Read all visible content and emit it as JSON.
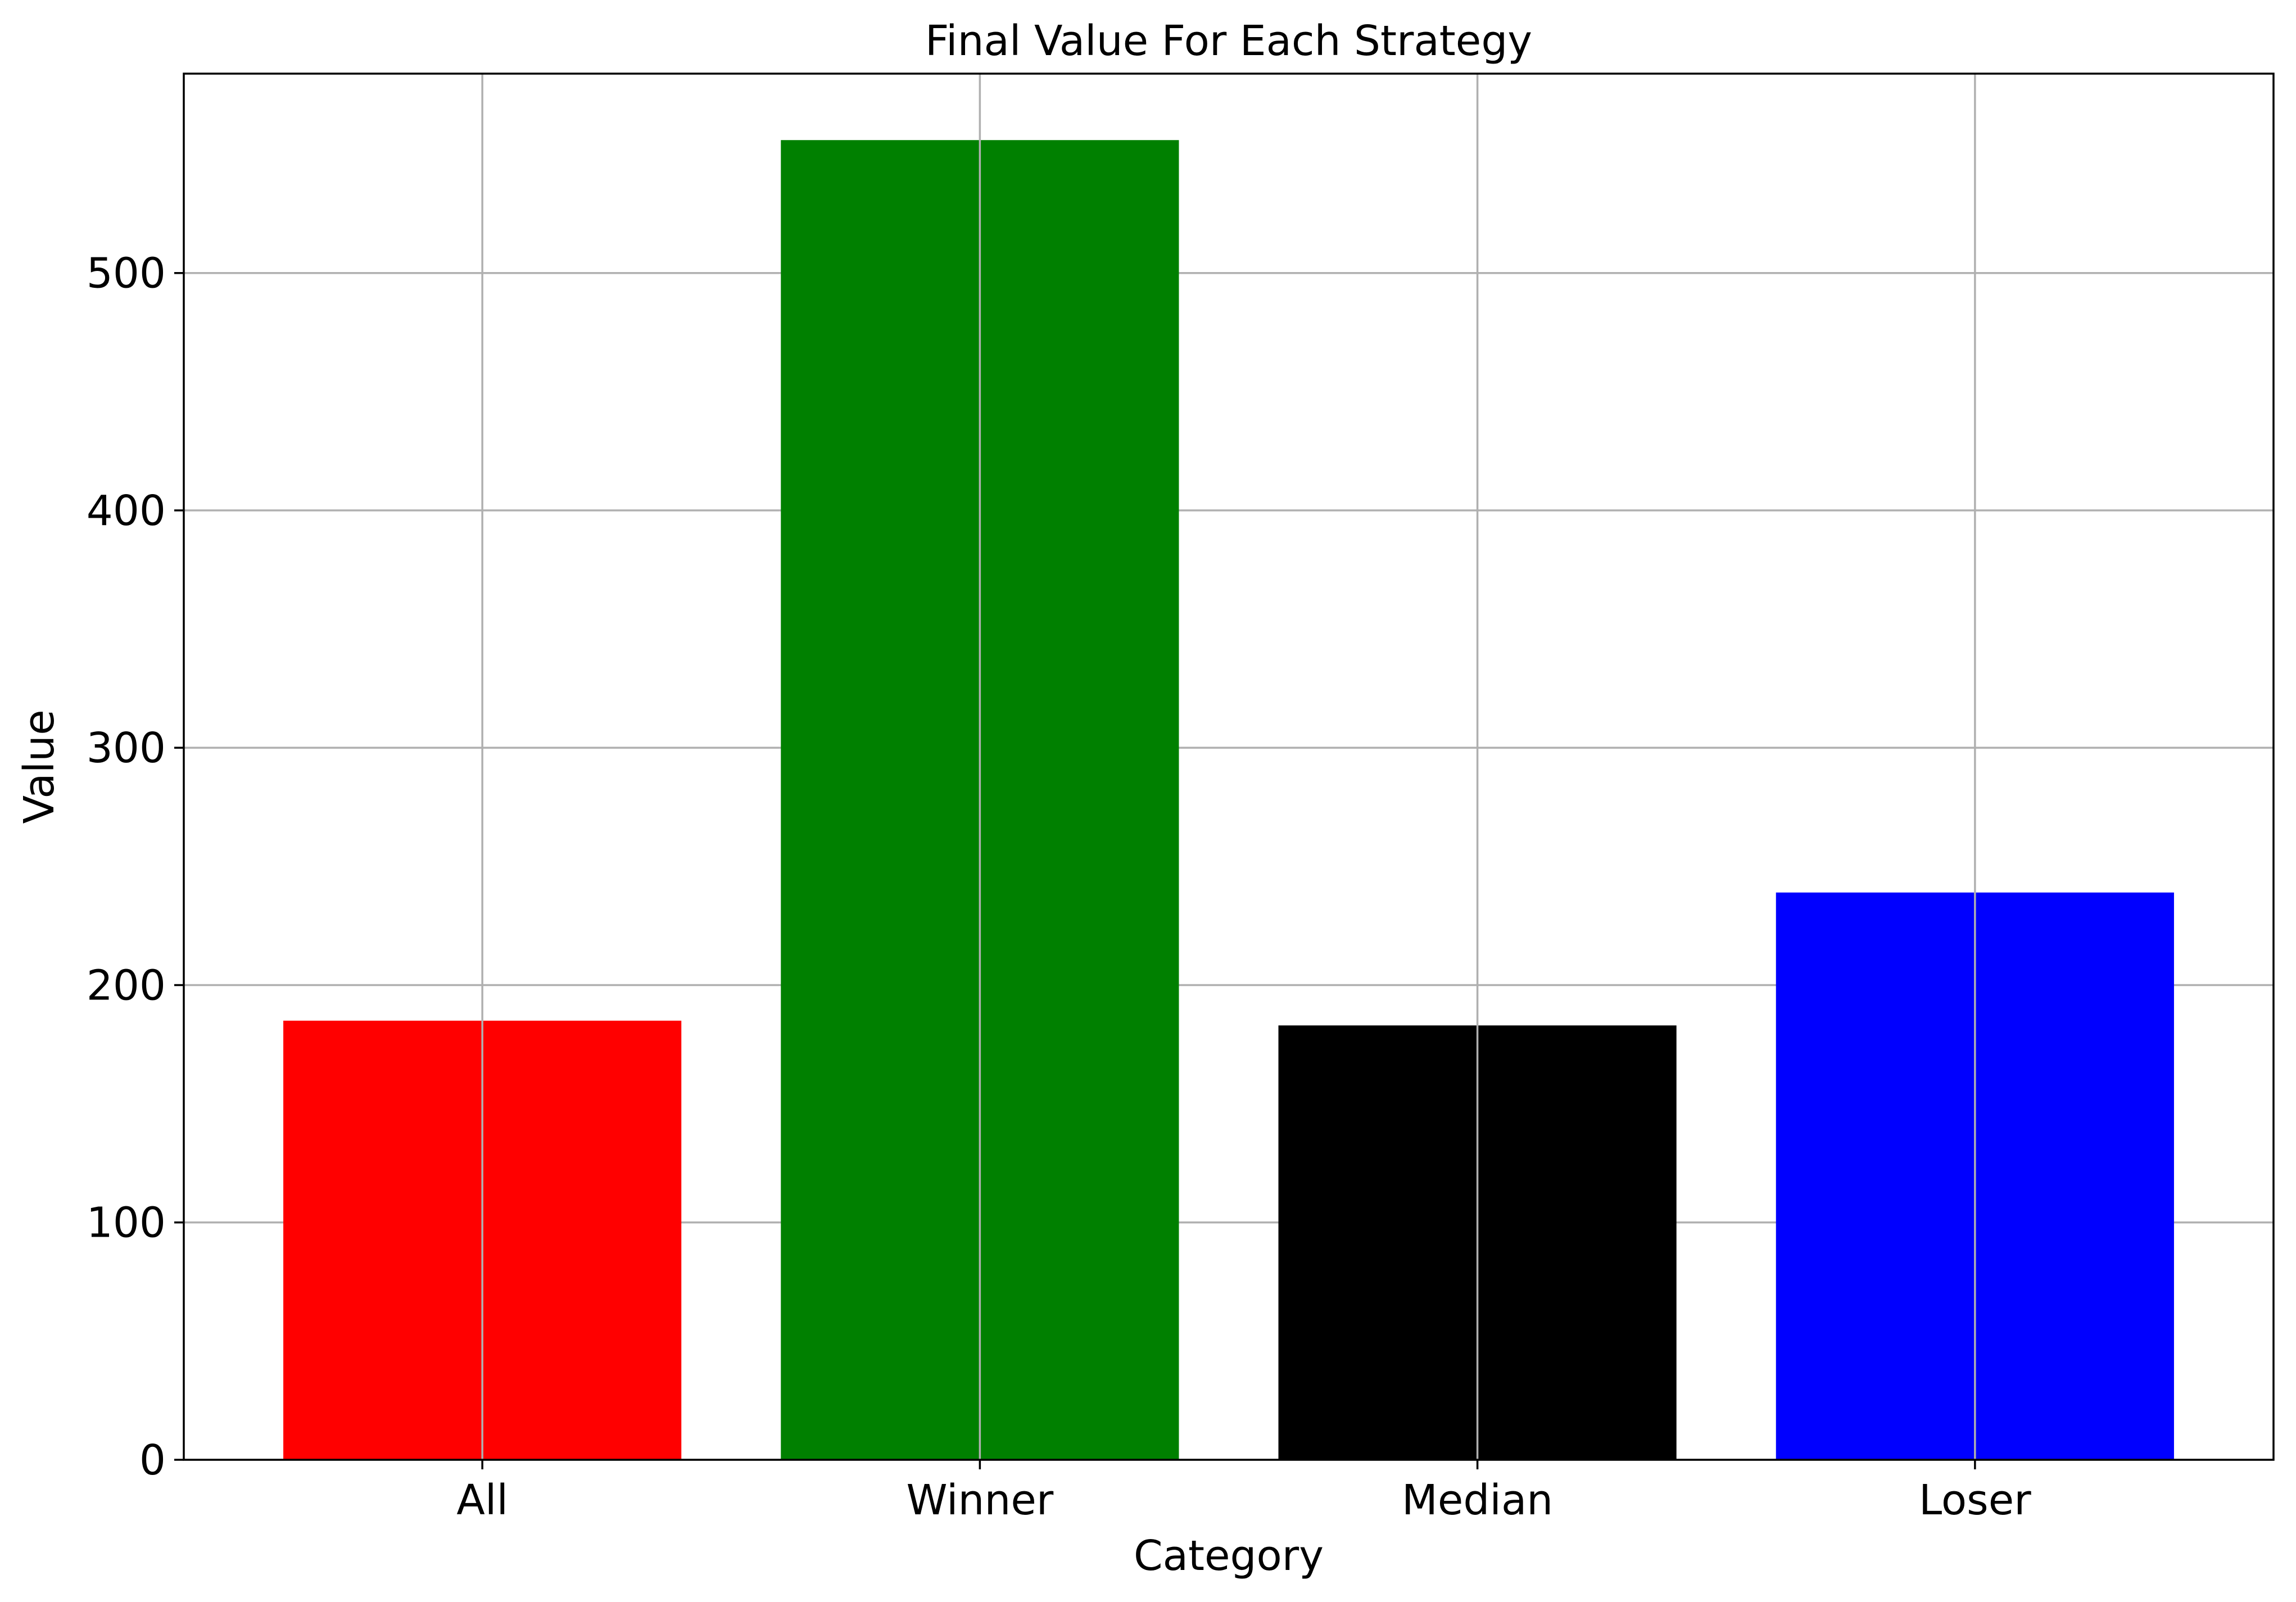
{
  "chart_data": {
    "type": "bar",
    "title": "Final Value For Each Strategy",
    "xlabel": "Category",
    "ylabel": "Value",
    "categories": [
      "All",
      "Winner",
      "Median",
      "Loser"
    ],
    "values": [
      185,
      556,
      183,
      239
    ],
    "colors": [
      "#ff0000",
      "#008000",
      "#000000",
      "#0000ff"
    ],
    "ylim": [
      0,
      584
    ],
    "yticks": [
      0,
      100,
      200,
      300,
      400,
      500
    ],
    "grid": true,
    "legend": "none"
  }
}
